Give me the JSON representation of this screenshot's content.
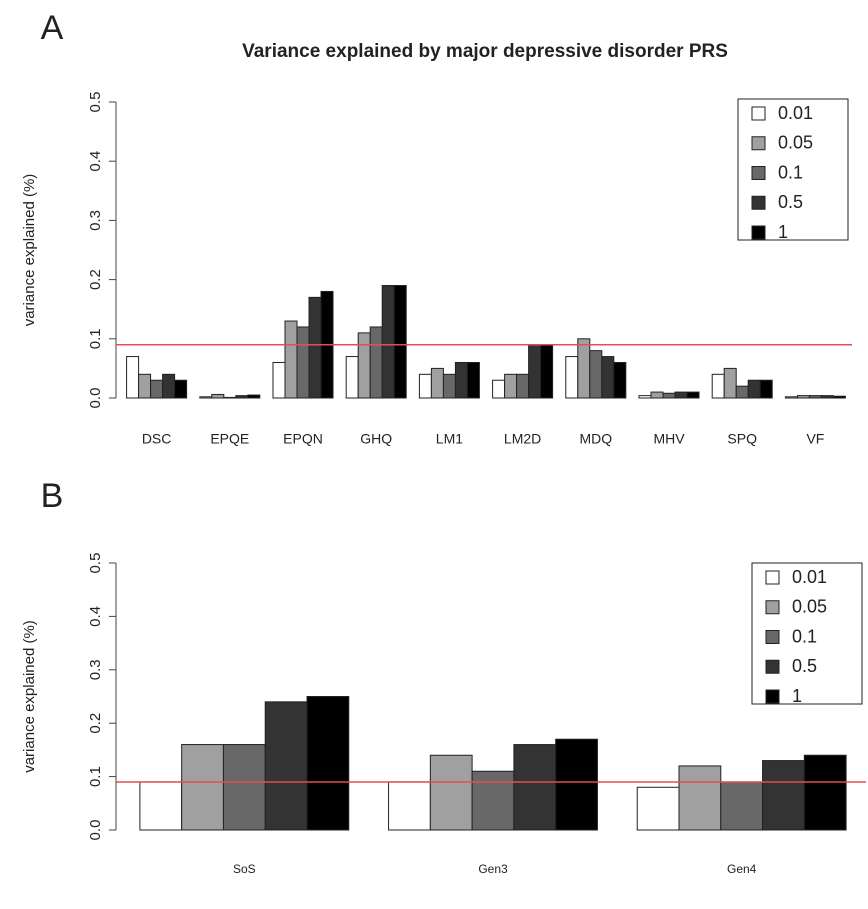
{
  "chart_data": [
    {
      "type": "bar",
      "panel_label": "A",
      "title": "Variance explained by major depressive disorder PRS",
      "y_label": "variance explained (%)",
      "categories": [
        "DSC",
        "EPQE",
        "EPQN",
        "GHQ",
        "LM1",
        "LM2D",
        "MDQ",
        "MHV",
        "SPQ",
        "VF"
      ],
      "series": [
        {
          "name": "0.01",
          "color": "#ffffff",
          "values": [
            0.07,
            0.002,
            0.06,
            0.07,
            0.04,
            0.03,
            0.07,
            0.004,
            0.04,
            0.002
          ]
        },
        {
          "name": "0.05",
          "color": "#a0a0a0",
          "values": [
            0.04,
            0.006,
            0.13,
            0.11,
            0.05,
            0.04,
            0.1,
            0.01,
            0.05,
            0.004
          ]
        },
        {
          "name": "0.1",
          "color": "#686868",
          "values": [
            0.03,
            0.001,
            0.12,
            0.12,
            0.04,
            0.04,
            0.08,
            0.008,
            0.02,
            0.004
          ]
        },
        {
          "name": "0.5",
          "color": "#333333",
          "values": [
            0.04,
            0.004,
            0.17,
            0.19,
            0.06,
            0.09,
            0.07,
            0.01,
            0.03,
            0.004
          ]
        },
        {
          "name": "1",
          "color": "#000000",
          "values": [
            0.03,
            0.005,
            0.18,
            0.19,
            0.06,
            0.09,
            0.06,
            0.01,
            0.03,
            0.003
          ]
        }
      ],
      "ylim": [
        0,
        0.5
      ],
      "yticks": [
        {
          "value": 0,
          "label": "0.0"
        },
        0.1,
        0.2,
        0.3,
        0.4,
        0.5
      ],
      "reference_line": 0.09,
      "reference_color": "#e05050",
      "legend": "top-right"
    },
    {
      "type": "bar",
      "panel_label": "B",
      "y_label": "variance explained (%)",
      "categories": [
        "SoS",
        "Gen3",
        "Gen4"
      ],
      "series": [
        {
          "name": "0.01",
          "color": "#ffffff",
          "values": [
            0.09,
            0.09,
            0.08
          ]
        },
        {
          "name": "0.05",
          "color": "#a0a0a0",
          "values": [
            0.16,
            0.14,
            0.12
          ]
        },
        {
          "name": "0.1",
          "color": "#686868",
          "values": [
            0.16,
            0.11,
            0.09
          ]
        },
        {
          "name": "0.5",
          "color": "#333333",
          "values": [
            0.24,
            0.16,
            0.13
          ]
        },
        {
          "name": "1",
          "color": "#000000",
          "values": [
            0.25,
            0.17,
            0.14
          ]
        }
      ],
      "ylim": [
        0,
        0.5
      ],
      "yticks": [
        {
          "value": 0,
          "label": "0.0"
        },
        0.1,
        0.2,
        0.3,
        0.4,
        0.5
      ],
      "reference_line": 0.09,
      "reference_color": "#e05050",
      "legend": "top-right"
    }
  ]
}
